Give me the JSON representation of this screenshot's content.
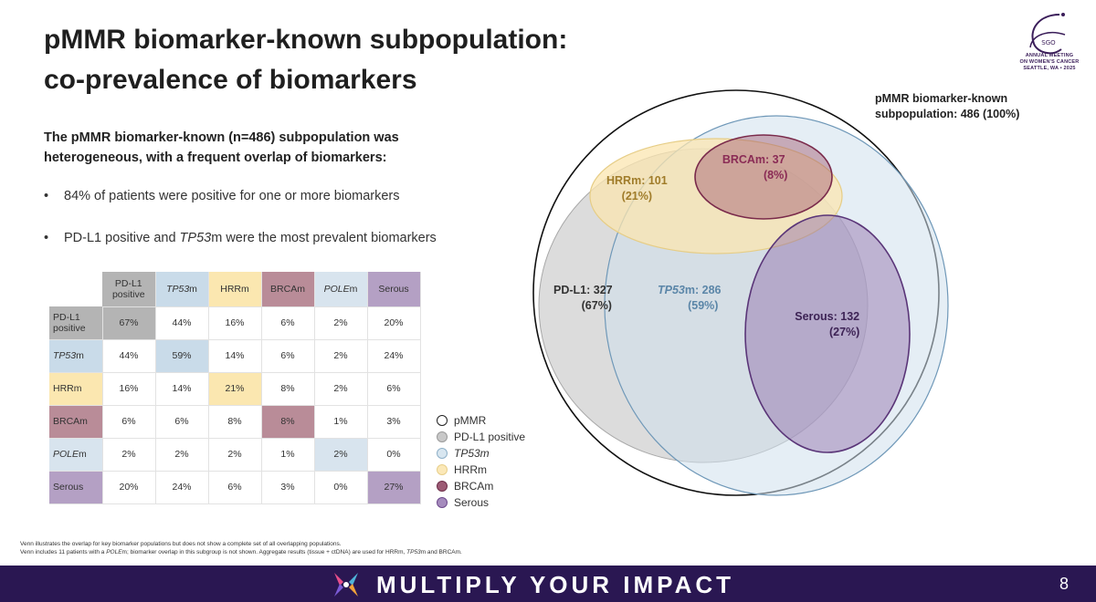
{
  "title": {
    "line1": "pMMR biomarker-known subpopulation:",
    "line2": "co-prevalence of biomarkers"
  },
  "logo": {
    "mark": "SGO",
    "line1": "ANNUAL MEETING",
    "line2": "ON WOMEN'S CANCER",
    "line3": "SEATTLE, WA • 2025"
  },
  "intro": {
    "line1": "The pMMR biomarker-known (n=486) subpopulation was",
    "line2": "heterogeneous, with a frequent overlap of biomarkers:"
  },
  "bullets": [
    {
      "pre": "84% of patients were positive for one or more biomarkers",
      "it": "",
      "post": ""
    },
    {
      "pre": "PD-L1 positive and ",
      "it": "TP53",
      "post": "m were the most prevalent biomarkers"
    }
  ],
  "matrix": {
    "columns": [
      {
        "pre": "PD-L1",
        "line2": "positive",
        "it": "",
        "post": "",
        "color": "#b4b4b4"
      },
      {
        "pre": "",
        "line2": "",
        "it": "TP53",
        "post": "m",
        "color": "#c9dbe9"
      },
      {
        "pre": "HRRm",
        "line2": "",
        "it": "",
        "post": "",
        "color": "#fbe7b0"
      },
      {
        "pre": "BRCAm",
        "line2": "",
        "it": "",
        "post": "",
        "color": "#b98c98"
      },
      {
        "pre": "",
        "line2": "",
        "it": "POLE",
        "post": "m",
        "color": "#d8e4ee"
      },
      {
        "pre": "Serous",
        "line2": "",
        "it": "",
        "post": "",
        "color": "#b4a0c4"
      }
    ],
    "rows": [
      {
        "pre": "PD-L1",
        "line2": "positive",
        "it": "",
        "post": "",
        "color": "#b4b4b4",
        "cells": [
          "67%",
          "44%",
          "16%",
          "6%",
          "2%",
          "20%"
        ]
      },
      {
        "pre": "",
        "line2": "",
        "it": "TP53",
        "post": "m",
        "color": "#c9dbe9",
        "cells": [
          "44%",
          "59%",
          "14%",
          "6%",
          "2%",
          "24%"
        ]
      },
      {
        "pre": "HRRm",
        "line2": "",
        "it": "",
        "post": "",
        "color": "#fbe7b0",
        "cells": [
          "16%",
          "14%",
          "21%",
          "8%",
          "2%",
          "6%"
        ]
      },
      {
        "pre": "BRCAm",
        "line2": "",
        "it": "",
        "post": "",
        "color": "#b98c98",
        "cells": [
          "6%",
          "6%",
          "8%",
          "8%",
          "1%",
          "3%"
        ]
      },
      {
        "pre": "",
        "line2": "",
        "it": "POLE",
        "post": "m",
        "color": "#d8e4ee",
        "cells": [
          "2%",
          "2%",
          "2%",
          "1%",
          "2%",
          "0%"
        ]
      },
      {
        "pre": "Serous",
        "line2": "",
        "it": "",
        "post": "",
        "color": "#b4a0c4",
        "cells": [
          "20%",
          "24%",
          "6%",
          "3%",
          "0%",
          "27%"
        ]
      }
    ]
  },
  "legend": [
    {
      "pre": "pMMR",
      "it": "",
      "post": "",
      "fill": "#ffffff",
      "stroke": "#222222"
    },
    {
      "pre": "PD-L1 positive",
      "it": "",
      "post": "",
      "fill": "#c8c8c8",
      "stroke": "#9a9a9a"
    },
    {
      "pre": "",
      "it": "TP53m",
      "post": "",
      "fill": "#d8e6f0",
      "stroke": "#8fb0c8"
    },
    {
      "pre": "HRRm",
      "it": "",
      "post": "",
      "fill": "#fbe8b8",
      "stroke": "#e8cf8a"
    },
    {
      "pre": "BRCAm",
      "it": "",
      "post": "",
      "fill": "#9c5a74",
      "stroke": "#6e2f4a"
    },
    {
      "pre": "Serous",
      "it": "",
      "post": "",
      "fill": "#a58bbd",
      "stroke": "#6e4a8c"
    }
  ],
  "venn": {
    "outer_label_line1": "pMMR biomarker-known",
    "outer_label_line2": "subpopulation: 486 (100%)",
    "labels": {
      "pdl1": {
        "l1": "PD-L1: 327",
        "l2": "(67%)",
        "color": "#333333"
      },
      "tp53": {
        "pre": "",
        "it": "TP53",
        "post": "m: 286",
        "l2": "(59%)",
        "color": "#5b86a8"
      },
      "hrr": {
        "l1": "HRRm: 101",
        "l2": "(21%)",
        "color": "#a07c2a"
      },
      "brca": {
        "l1": "BRCAm: 37",
        "l2": "(8%)",
        "color": "#8a2b55"
      },
      "serous": {
        "l1": "Serous: 132",
        "l2": "(27%)",
        "color": "#3d2355"
      }
    }
  },
  "footnotes": {
    "line1": "Venn illustrates the overlap for key biomarker populations but does not show a complete set of all overlapping populations.",
    "line2_pre": "Venn includes 11 patients with a ",
    "line2_it1": "POLE",
    "line2_mid": "m; biomarker overlap in this subgroup is not shown. Aggregate results (tissue + ctDNA) are used for HRRm, ",
    "line2_it2": "TP53",
    "line2_post": "m and BRCAm."
  },
  "banner": {
    "text": "MULTIPLY YOUR IMPACT",
    "page_number": "8",
    "bg": "#2a1752"
  }
}
